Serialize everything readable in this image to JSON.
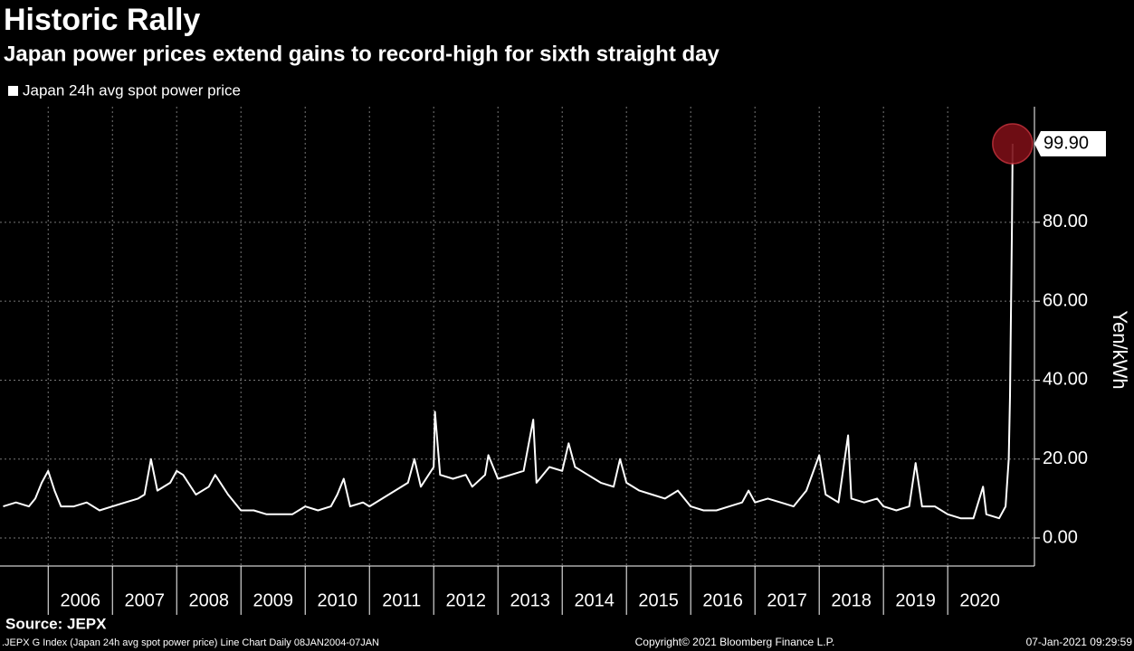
{
  "chart_data": {
    "type": "line",
    "title": "Historic Rally",
    "subtitle": "Japan power prices extend gains to record-high for sixth straight day",
    "y_axis_label": "Yen/kWh",
    "source": "Source: JEPX",
    "footer_left": ".JEPX G Index (Japan 24h avg spot power price) Line Chart  Daily 08JAN2004-07JAN",
    "footer_center": "Copyright© 2021 Bloomberg Finance L.P.",
    "footer_right": "07-Jan-2021 09:29:59",
    "x": [
      2005.3,
      2005.5,
      2005.7,
      2005.8,
      2005.9,
      2006.0,
      2006.1,
      2006.2,
      2006.4,
      2006.6,
      2006.8,
      2007.0,
      2007.2,
      2007.4,
      2007.5,
      2007.6,
      2007.7,
      2007.9,
      2008.0,
      2008.1,
      2008.3,
      2008.5,
      2008.6,
      2008.8,
      2008.9,
      2009.0,
      2009.2,
      2009.4,
      2009.6,
      2009.8,
      2010.0,
      2010.2,
      2010.4,
      2010.5,
      2010.6,
      2010.7,
      2010.9,
      2011.0,
      2011.2,
      2011.4,
      2011.6,
      2011.7,
      2011.8,
      2012.0,
      2012.02,
      2012.1,
      2012.3,
      2012.5,
      2012.6,
      2012.8,
      2012.85,
      2013.0,
      2013.2,
      2013.4,
      2013.55,
      2013.6,
      2013.8,
      2014.0,
      2014.1,
      2014.2,
      2014.4,
      2014.6,
      2014.8,
      2014.9,
      2015.0,
      2015.2,
      2015.4,
      2015.6,
      2015.8,
      2016.0,
      2016.2,
      2016.4,
      2016.6,
      2016.8,
      2016.9,
      2017.0,
      2017.2,
      2017.4,
      2017.6,
      2017.8,
      2018.0,
      2018.1,
      2018.3,
      2018.45,
      2018.5,
      2018.7,
      2018.9,
      2019.0,
      2019.2,
      2019.4,
      2019.5,
      2019.6,
      2019.8,
      2020.0,
      2020.2,
      2020.4,
      2020.55,
      2020.6,
      2020.8,
      2020.9,
      2020.95,
      2020.97,
      2021.0,
      2021.01
    ],
    "series": [
      {
        "name": "Japan 24h avg spot power price",
        "color": "#ffffff",
        "values": [
          8,
          9,
          8,
          10,
          14,
          17,
          12,
          8,
          8,
          9,
          7,
          8,
          9,
          10,
          11,
          20,
          12,
          14,
          17,
          16,
          11,
          13,
          16,
          11,
          9,
          7,
          7,
          6,
          6,
          6,
          8,
          7,
          8,
          11,
          15,
          8,
          9,
          8,
          10,
          12,
          14,
          20,
          13,
          18,
          32,
          16,
          15,
          16,
          13,
          16,
          21,
          15,
          16,
          17,
          30,
          14,
          18,
          17,
          24,
          18,
          16,
          14,
          13,
          20,
          14,
          12,
          11,
          10,
          12,
          8,
          7,
          7,
          8,
          9,
          12,
          9,
          10,
          9,
          8,
          12,
          21,
          11,
          9,
          26,
          10,
          9,
          10,
          8,
          7,
          8,
          19,
          8,
          8,
          6,
          5,
          5,
          13,
          6,
          5,
          8,
          20,
          36,
          80,
          99.9
        ]
      }
    ],
    "annotations": [
      {
        "label": "99.90",
        "value": 99.9
      }
    ],
    "xlim": [
      2005.25,
      2021.35
    ],
    "xticks": [
      {
        "value": 2006,
        "label": "2006"
      },
      {
        "value": 2007,
        "label": "2007"
      },
      {
        "value": 2008,
        "label": "2008"
      },
      {
        "value": 2009,
        "label": "2009"
      },
      {
        "value": 2010,
        "label": "2010"
      },
      {
        "value": 2011,
        "label": "2011"
      },
      {
        "value": 2012,
        "label": "2012"
      },
      {
        "value": 2013,
        "label": "2013"
      },
      {
        "value": 2014,
        "label": "2014"
      },
      {
        "value": 2015,
        "label": "2015"
      },
      {
        "value": 2016,
        "label": "2016"
      },
      {
        "value": 2017,
        "label": "2017"
      },
      {
        "value": 2018,
        "label": "2018"
      },
      {
        "value": 2019,
        "label": "2019"
      },
      {
        "value": 2020,
        "label": "2020"
      }
    ],
    "ylim": [
      -7.1,
      109.3
    ],
    "yticks": [
      {
        "value": 0,
        "label": "0.00"
      },
      {
        "value": 20,
        "label": "20.00"
      },
      {
        "value": 40,
        "label": "40.00"
      },
      {
        "value": 60,
        "label": "60.00"
      },
      {
        "value": 80,
        "label": "80.00"
      }
    ],
    "grid": true
  }
}
